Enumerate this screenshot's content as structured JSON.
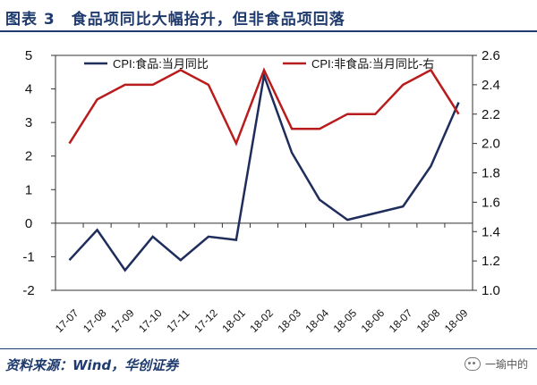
{
  "header": {
    "title": "图表 3　食品项同比大幅抬升，但非食品项回落"
  },
  "footer": {
    "source": "资料来源：Wind，华创证券",
    "watermark": "一瑜中的"
  },
  "chart_data": {
    "type": "line",
    "title": "",
    "categories": [
      "17-07",
      "17-08",
      "17-09",
      "17-10",
      "17-11",
      "17-12",
      "18-01",
      "18-02",
      "18-03",
      "18-04",
      "18-05",
      "18-06",
      "18-07",
      "18-08",
      "18-09"
    ],
    "y_left": {
      "min": -2,
      "max": 5,
      "ticks": [
        -2,
        -1,
        0,
        1,
        2,
        3,
        4,
        5
      ]
    },
    "y_right": {
      "min": 1.0,
      "max": 2.6,
      "ticks": [
        "1.0",
        "1.2",
        "1.4",
        "1.6",
        "1.8",
        "2.0",
        "2.2",
        "2.4",
        "2.6"
      ]
    },
    "legend_position": "top",
    "series": [
      {
        "name": "CPI:食品:当月同比",
        "axis": "left",
        "color": "#1f2d5c",
        "values": [
          -1.1,
          -0.2,
          -1.4,
          -0.4,
          -1.1,
          -0.4,
          -0.5,
          4.4,
          2.1,
          0.7,
          0.1,
          0.3,
          0.5,
          1.7,
          3.6
        ]
      },
      {
        "name": "CPI:非食品:当月同比-右",
        "axis": "right",
        "color": "#b81c1c",
        "values": [
          2.0,
          2.3,
          2.4,
          2.4,
          2.5,
          2.4,
          2.0,
          2.5,
          2.1,
          2.1,
          2.2,
          2.2,
          2.4,
          2.5,
          2.2
        ]
      }
    ]
  }
}
